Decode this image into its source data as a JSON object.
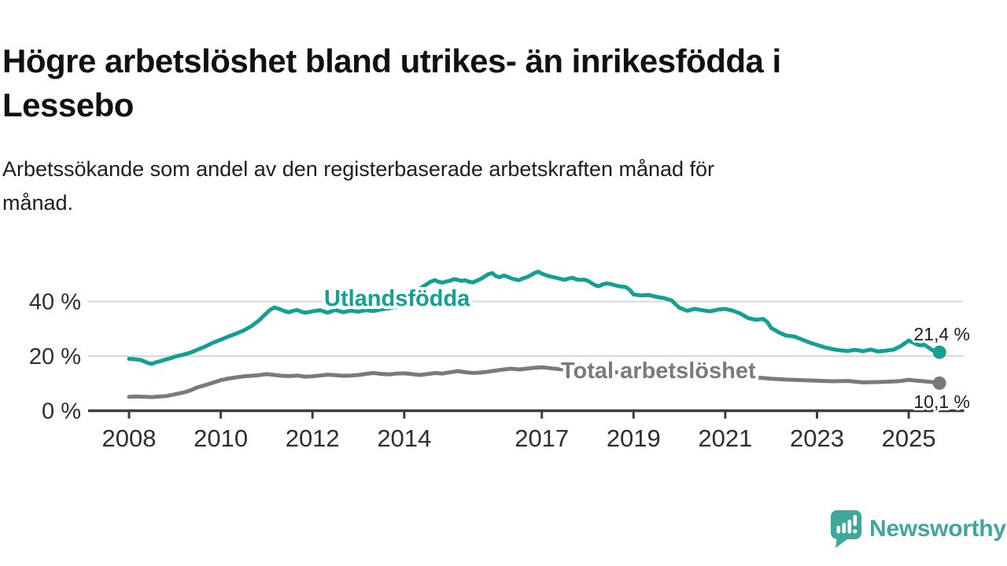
{
  "title": {
    "line1": "Högre arbetslöshet bland utrikes- än inrikesfödda i",
    "line2": "Lessebo"
  },
  "subtitle": {
    "line1": "Arbetssökande som andel av den registerbaserade arbetskraften månad för",
    "line2": "månad."
  },
  "chart_data": {
    "type": "line",
    "x_unit": "decimal_year",
    "grid": "horizontal",
    "xlim": [
      2007.1,
      2026.2
    ],
    "ylim": [
      0,
      55
    ],
    "xticks": [
      {
        "value": 2008,
        "label": "2008"
      },
      {
        "value": 2010,
        "label": "2010"
      },
      {
        "value": 2012,
        "label": "2012"
      },
      {
        "value": 2014,
        "label": "2014"
      },
      {
        "value": 2017,
        "label": "2017"
      },
      {
        "value": 2019,
        "label": "2019"
      },
      {
        "value": 2021,
        "label": "2021"
      },
      {
        "value": 2023,
        "label": "2023"
      },
      {
        "value": 2025,
        "label": "2025"
      }
    ],
    "yticks": [
      {
        "value": 0,
        "label": "0 %"
      },
      {
        "value": 20,
        "label": "20 %"
      },
      {
        "value": 40,
        "label": "40 %"
      }
    ],
    "colors": {
      "gridline": "#d9d9d9",
      "axis": "#3d3d3d",
      "tick_text": "#2e2e2e"
    },
    "series": [
      {
        "name": "Utlandsfödda",
        "label_text": "Utlandsfödda",
        "color": "#13a092",
        "end_label": "21,4 %",
        "end_value": 21.4,
        "points": [
          [
            2008.0,
            19.0
          ],
          [
            2008.08,
            18.9
          ],
          [
            2008.17,
            18.8
          ],
          [
            2008.25,
            18.6
          ],
          [
            2008.33,
            18.1
          ],
          [
            2008.42,
            17.4
          ],
          [
            2008.5,
            17.2
          ],
          [
            2008.58,
            17.7
          ],
          [
            2008.67,
            18.1
          ],
          [
            2008.75,
            18.5
          ],
          [
            2008.83,
            18.9
          ],
          [
            2008.92,
            19.3
          ],
          [
            2009.0,
            19.8
          ],
          [
            2009.17,
            20.5
          ],
          [
            2009.33,
            21.2
          ],
          [
            2009.5,
            22.4
          ],
          [
            2009.67,
            23.6
          ],
          [
            2009.83,
            24.9
          ],
          [
            2010.0,
            26.0
          ],
          [
            2010.17,
            27.2
          ],
          [
            2010.33,
            28.2
          ],
          [
            2010.5,
            29.4
          ],
          [
            2010.67,
            31.0
          ],
          [
            2010.83,
            33.0
          ],
          [
            2011.0,
            35.8
          ],
          [
            2011.08,
            37.0
          ],
          [
            2011.17,
            37.8
          ],
          [
            2011.25,
            37.4
          ],
          [
            2011.33,
            36.9
          ],
          [
            2011.42,
            36.3
          ],
          [
            2011.5,
            36.1
          ],
          [
            2011.58,
            36.6
          ],
          [
            2011.67,
            36.9
          ],
          [
            2011.75,
            36.3
          ],
          [
            2011.83,
            35.9
          ],
          [
            2011.92,
            36.1
          ],
          [
            2012.0,
            36.4
          ],
          [
            2012.17,
            36.8
          ],
          [
            2012.33,
            35.9
          ],
          [
            2012.5,
            36.9
          ],
          [
            2012.67,
            36.1
          ],
          [
            2012.83,
            36.6
          ],
          [
            2013.0,
            36.3
          ],
          [
            2013.17,
            36.8
          ],
          [
            2013.33,
            36.5
          ],
          [
            2013.5,
            37.1
          ],
          [
            2013.67,
            37.5
          ],
          [
            2013.83,
            38.1
          ],
          [
            2014.0,
            39.4
          ],
          [
            2014.17,
            41.8
          ],
          [
            2014.33,
            44.6
          ],
          [
            2014.5,
            46.4
          ],
          [
            2014.58,
            47.3
          ],
          [
            2014.67,
            47.8
          ],
          [
            2014.75,
            47.2
          ],
          [
            2014.83,
            46.9
          ],
          [
            2014.92,
            47.3
          ],
          [
            2015.0,
            47.6
          ],
          [
            2015.08,
            48.2
          ],
          [
            2015.17,
            47.9
          ],
          [
            2015.25,
            47.5
          ],
          [
            2015.33,
            47.8
          ],
          [
            2015.42,
            47.2
          ],
          [
            2015.5,
            47.0
          ],
          [
            2015.58,
            47.6
          ],
          [
            2015.67,
            48.3
          ],
          [
            2015.75,
            49.1
          ],
          [
            2015.83,
            50.0
          ],
          [
            2015.92,
            50.4
          ],
          [
            2016.0,
            49.3
          ],
          [
            2016.08,
            48.9
          ],
          [
            2016.17,
            49.5
          ],
          [
            2016.25,
            49.1
          ],
          [
            2016.33,
            48.5
          ],
          [
            2016.42,
            48.1
          ],
          [
            2016.5,
            47.8
          ],
          [
            2016.58,
            48.4
          ],
          [
            2016.67,
            48.9
          ],
          [
            2016.75,
            49.5
          ],
          [
            2016.83,
            50.3
          ],
          [
            2016.92,
            50.9
          ],
          [
            2017.0,
            50.2
          ],
          [
            2017.08,
            49.7
          ],
          [
            2017.17,
            49.2
          ],
          [
            2017.25,
            48.9
          ],
          [
            2017.33,
            48.6
          ],
          [
            2017.42,
            48.2
          ],
          [
            2017.5,
            47.9
          ],
          [
            2017.58,
            48.4
          ],
          [
            2017.67,
            48.7
          ],
          [
            2017.75,
            48.1
          ],
          [
            2017.83,
            47.9
          ],
          [
            2017.92,
            48.0
          ],
          [
            2018.0,
            47.6
          ],
          [
            2018.17,
            45.9
          ],
          [
            2018.25,
            45.6
          ],
          [
            2018.33,
            46.3
          ],
          [
            2018.42,
            46.6
          ],
          [
            2018.5,
            46.4
          ],
          [
            2018.58,
            46.0
          ],
          [
            2018.67,
            45.6
          ],
          [
            2018.83,
            45.3
          ],
          [
            2018.92,
            44.2
          ],
          [
            2019.0,
            42.6
          ],
          [
            2019.17,
            42.2
          ],
          [
            2019.33,
            42.4
          ],
          [
            2019.5,
            41.7
          ],
          [
            2019.67,
            41.2
          ],
          [
            2019.83,
            40.4
          ],
          [
            2019.92,
            38.9
          ],
          [
            2020.0,
            37.7
          ],
          [
            2020.17,
            36.6
          ],
          [
            2020.33,
            37.3
          ],
          [
            2020.5,
            36.8
          ],
          [
            2020.67,
            36.4
          ],
          [
            2020.83,
            37.0
          ],
          [
            2021.0,
            37.3
          ],
          [
            2021.17,
            36.6
          ],
          [
            2021.33,
            35.6
          ],
          [
            2021.5,
            33.9
          ],
          [
            2021.67,
            33.3
          ],
          [
            2021.83,
            33.6
          ],
          [
            2021.92,
            32.4
          ],
          [
            2022.0,
            30.3
          ],
          [
            2022.17,
            28.7
          ],
          [
            2022.33,
            27.5
          ],
          [
            2022.5,
            27.2
          ],
          [
            2022.67,
            26.1
          ],
          [
            2022.83,
            25.0
          ],
          [
            2023.0,
            24.1
          ],
          [
            2023.17,
            23.2
          ],
          [
            2023.33,
            22.6
          ],
          [
            2023.5,
            22.1
          ],
          [
            2023.67,
            21.9
          ],
          [
            2023.83,
            22.3
          ],
          [
            2024.0,
            21.8
          ],
          [
            2024.17,
            22.4
          ],
          [
            2024.33,
            21.7
          ],
          [
            2024.5,
            22.0
          ],
          [
            2024.67,
            22.4
          ],
          [
            2024.83,
            23.7
          ],
          [
            2025.0,
            25.7
          ],
          [
            2025.08,
            25.1
          ],
          [
            2025.17,
            24.3
          ],
          [
            2025.25,
            23.9
          ],
          [
            2025.33,
            24.2
          ],
          [
            2025.42,
            23.3
          ],
          [
            2025.5,
            22.3
          ],
          [
            2025.58,
            21.7
          ],
          [
            2025.67,
            21.4
          ]
        ]
      },
      {
        "name": "Total arbetslöshet",
        "label_text": "Total arbetslöshet",
        "color": "#7a7a7e",
        "end_label": "10,1 %",
        "end_value": 10.1,
        "points": [
          [
            2008.0,
            5.1
          ],
          [
            2008.17,
            5.2
          ],
          [
            2008.33,
            5.1
          ],
          [
            2008.5,
            5.0
          ],
          [
            2008.67,
            5.2
          ],
          [
            2008.83,
            5.4
          ],
          [
            2009.0,
            6.0
          ],
          [
            2009.17,
            6.6
          ],
          [
            2009.33,
            7.4
          ],
          [
            2009.5,
            8.6
          ],
          [
            2009.67,
            9.4
          ],
          [
            2009.83,
            10.3
          ],
          [
            2010.0,
            11.2
          ],
          [
            2010.17,
            11.8
          ],
          [
            2010.33,
            12.2
          ],
          [
            2010.5,
            12.6
          ],
          [
            2010.67,
            12.8
          ],
          [
            2010.83,
            13.0
          ],
          [
            2011.0,
            13.4
          ],
          [
            2011.17,
            13.1
          ],
          [
            2011.33,
            12.8
          ],
          [
            2011.5,
            12.7
          ],
          [
            2011.67,
            12.9
          ],
          [
            2011.83,
            12.5
          ],
          [
            2012.0,
            12.6
          ],
          [
            2012.17,
            12.9
          ],
          [
            2012.33,
            13.2
          ],
          [
            2012.5,
            13.0
          ],
          [
            2012.67,
            12.8
          ],
          [
            2012.83,
            12.9
          ],
          [
            2013.0,
            13.1
          ],
          [
            2013.17,
            13.5
          ],
          [
            2013.33,
            13.8
          ],
          [
            2013.5,
            13.5
          ],
          [
            2013.67,
            13.3
          ],
          [
            2013.83,
            13.6
          ],
          [
            2014.0,
            13.7
          ],
          [
            2014.17,
            13.4
          ],
          [
            2014.33,
            13.1
          ],
          [
            2014.5,
            13.4
          ],
          [
            2014.67,
            13.8
          ],
          [
            2014.83,
            13.6
          ],
          [
            2015.0,
            14.1
          ],
          [
            2015.17,
            14.5
          ],
          [
            2015.33,
            14.1
          ],
          [
            2015.5,
            13.8
          ],
          [
            2015.67,
            14.0
          ],
          [
            2015.83,
            14.3
          ],
          [
            2016.0,
            14.7
          ],
          [
            2016.17,
            15.1
          ],
          [
            2016.33,
            15.4
          ],
          [
            2016.5,
            15.1
          ],
          [
            2016.67,
            15.4
          ],
          [
            2016.83,
            15.7
          ],
          [
            2017.0,
            15.9
          ],
          [
            2017.17,
            15.6
          ],
          [
            2017.33,
            15.3
          ],
          [
            2017.5,
            15.1
          ],
          [
            2017.67,
            15.3
          ],
          [
            2017.83,
            15.0
          ],
          [
            2018.0,
            14.8
          ],
          [
            2018.33,
            14.4
          ],
          [
            2018.67,
            14.0
          ],
          [
            2019.0,
            13.6
          ],
          [
            2019.33,
            13.2
          ],
          [
            2019.67,
            12.9
          ],
          [
            2020.0,
            13.0
          ],
          [
            2020.33,
            13.5
          ],
          [
            2020.67,
            13.3
          ],
          [
            2021.0,
            13.0
          ],
          [
            2021.33,
            12.6
          ],
          [
            2021.67,
            12.2
          ],
          [
            2022.0,
            11.7
          ],
          [
            2022.33,
            11.4
          ],
          [
            2022.67,
            11.2
          ],
          [
            2023.0,
            11.0
          ],
          [
            2023.33,
            10.8
          ],
          [
            2023.67,
            10.9
          ],
          [
            2024.0,
            10.4
          ],
          [
            2024.33,
            10.5
          ],
          [
            2024.67,
            10.7
          ],
          [
            2024.83,
            10.9
          ],
          [
            2025.0,
            11.3
          ],
          [
            2025.17,
            11.0
          ],
          [
            2025.33,
            10.8
          ],
          [
            2025.5,
            10.5
          ],
          [
            2025.67,
            10.1
          ]
        ]
      }
    ]
  },
  "branding": {
    "logo_text": "Newsworthy",
    "logo_color": "#3fa79b",
    "logo_icon": "bar-chart-speech-bubble-icon"
  }
}
